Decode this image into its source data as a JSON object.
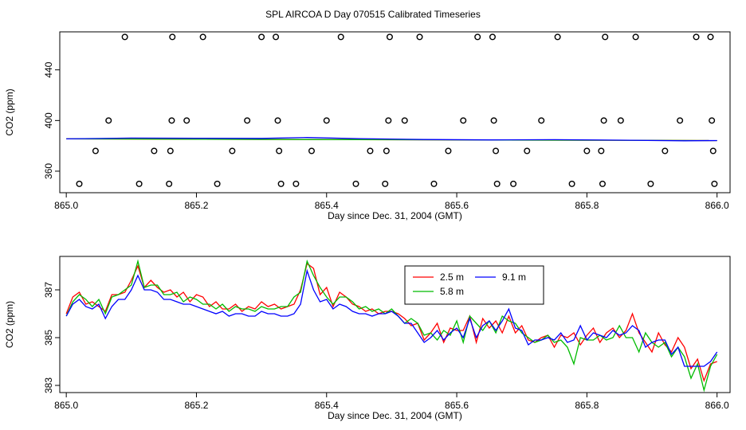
{
  "title": "SPL AIRCOA D  Day 070515  Calibrated Timeseries",
  "chart_data": [
    {
      "type": "scatter",
      "xlabel": "Day since Dec. 31, 2004 (GMT)",
      "ylabel": "CO2 (ppm)",
      "xlim": [
        864.99,
        866.02
      ],
      "ylim": [
        343,
        470
      ],
      "xticks": [
        865.0,
        865.2,
        865.4,
        865.6,
        865.8,
        866.0
      ],
      "xtick_labels": [
        "865.0",
        "865.2",
        "865.4",
        "865.6",
        "865.8",
        "866.0"
      ],
      "yticks": [
        360,
        400,
        440
      ],
      "ytick_labels": [
        "360",
        "400",
        "440"
      ],
      "marker_color": "#000000",
      "points": [
        [
          865.02,
          350
        ],
        [
          865.045,
          376
        ],
        [
          865.065,
          400
        ],
        [
          865.09,
          466
        ],
        [
          865.112,
          350
        ],
        [
          865.135,
          376
        ],
        [
          865.158,
          350
        ],
        [
          865.16,
          376
        ],
        [
          865.162,
          400
        ],
        [
          865.163,
          466
        ],
        [
          865.185,
          400
        ],
        [
          865.21,
          466
        ],
        [
          865.232,
          350
        ],
        [
          865.255,
          376
        ],
        [
          865.278,
          400
        ],
        [
          865.3,
          466
        ],
        [
          865.322,
          466
        ],
        [
          865.325,
          400
        ],
        [
          865.327,
          376
        ],
        [
          865.33,
          350
        ],
        [
          865.353,
          350
        ],
        [
          865.377,
          376
        ],
        [
          865.4,
          400
        ],
        [
          865.422,
          466
        ],
        [
          865.445,
          350
        ],
        [
          865.467,
          376
        ],
        [
          865.49,
          350
        ],
        [
          865.492,
          376
        ],
        [
          865.495,
          400
        ],
        [
          865.497,
          466
        ],
        [
          865.52,
          400
        ],
        [
          865.543,
          466
        ],
        [
          865.565,
          350
        ],
        [
          865.587,
          376
        ],
        [
          865.61,
          400
        ],
        [
          865.632,
          466
        ],
        [
          865.655,
          466
        ],
        [
          865.657,
          400
        ],
        [
          865.66,
          376
        ],
        [
          865.662,
          350
        ],
        [
          865.687,
          350
        ],
        [
          865.708,
          376
        ],
        [
          865.73,
          400
        ],
        [
          865.755,
          466
        ],
        [
          865.777,
          350
        ],
        [
          865.8,
          376
        ],
        [
          865.822,
          376
        ],
        [
          865.824,
          350
        ],
        [
          865.826,
          400
        ],
        [
          865.828,
          466
        ],
        [
          865.852,
          400
        ],
        [
          865.875,
          466
        ],
        [
          865.898,
          350
        ],
        [
          865.92,
          376
        ],
        [
          865.943,
          400
        ],
        [
          865.968,
          466
        ],
        [
          865.99,
          466
        ],
        [
          865.992,
          400
        ],
        [
          865.994,
          376
        ],
        [
          865.996,
          350
        ]
      ],
      "series": [
        {
          "color": "#ff0000",
          "x": [
            865.0,
            866.0
          ],
          "y": [
            385.5,
            384.2
          ]
        },
        {
          "color": "#00bb00",
          "x": [
            865.0,
            866.0
          ],
          "y": [
            385.5,
            384.2
          ]
        },
        {
          "color": "#0000ff",
          "x": [
            865.0,
            865.1,
            865.2,
            865.3,
            865.37,
            865.45,
            865.55,
            865.65,
            865.75,
            865.85,
            865.95,
            866.0
          ],
          "y": [
            385.5,
            386.1,
            386.0,
            385.9,
            386.6,
            385.7,
            385.0,
            384.7,
            384.9,
            384.5,
            384.0,
            384.2
          ]
        }
      ]
    },
    {
      "type": "line",
      "xlabel": "Day since Dec. 31, 2004 (GMT)",
      "ylabel": "CO2 (ppm)",
      "xlim": [
        864.99,
        866.02
      ],
      "ylim": [
        382.7,
        388.4
      ],
      "xticks": [
        865.0,
        865.2,
        865.4,
        865.6,
        865.8,
        866.0
      ],
      "xtick_labels": [
        "865.0",
        "865.2",
        "865.4",
        "865.6",
        "865.8",
        "866.0"
      ],
      "yticks": [
        383,
        385,
        387
      ],
      "ytick_labels": [
        "383",
        "385",
        "387"
      ],
      "legend_position": "top-right",
      "x": [
        865.0,
        865.01,
        865.02,
        865.03,
        865.04,
        865.05,
        865.06,
        865.07,
        865.08,
        865.09,
        865.1,
        865.11,
        865.12,
        865.13,
        865.14,
        865.15,
        865.16,
        865.17,
        865.18,
        865.19,
        865.2,
        865.21,
        865.22,
        865.23,
        865.24,
        865.25,
        865.26,
        865.27,
        865.28,
        865.29,
        865.3,
        865.31,
        865.32,
        865.33,
        865.34,
        865.35,
        865.36,
        865.37,
        865.38,
        865.39,
        865.4,
        865.41,
        865.42,
        865.43,
        865.44,
        865.45,
        865.46,
        865.47,
        865.48,
        865.49,
        865.5,
        865.51,
        865.52,
        865.53,
        865.54,
        865.55,
        865.56,
        865.57,
        865.58,
        865.59,
        865.6,
        865.61,
        865.62,
        865.63,
        865.64,
        865.65,
        865.66,
        865.67,
        865.68,
        865.69,
        865.7,
        865.71,
        865.72,
        865.73,
        865.74,
        865.75,
        865.76,
        865.77,
        865.78,
        865.79,
        865.8,
        865.81,
        865.82,
        865.83,
        865.84,
        865.85,
        865.86,
        865.87,
        865.88,
        865.89,
        865.9,
        865.91,
        865.92,
        865.93,
        865.94,
        865.95,
        865.96,
        865.97,
        865.98,
        865.99,
        866.0
      ],
      "series": [
        {
          "name": "2.5 m",
          "color": "#ff0000",
          "values": [
            386.0,
            386.7,
            386.9,
            386.4,
            386.5,
            386.3,
            386.1,
            386.8,
            386.8,
            386.9,
            387.4,
            388.0,
            387.1,
            387.4,
            387.1,
            386.9,
            387.0,
            386.7,
            386.9,
            386.5,
            386.8,
            386.7,
            386.3,
            386.5,
            386.2,
            386.2,
            386.4,
            386.1,
            386.3,
            386.2,
            386.5,
            386.3,
            386.4,
            386.2,
            386.3,
            386.4,
            387.0,
            388.1,
            387.9,
            386.8,
            387.1,
            386.3,
            386.9,
            386.7,
            386.4,
            386.3,
            386.1,
            386.2,
            386.0,
            386.1,
            386.1,
            386.0,
            385.8,
            385.5,
            385.6,
            384.9,
            385.2,
            385.6,
            384.8,
            385.4,
            385.3,
            385.3,
            385.9,
            384.8,
            385.8,
            385.4,
            385.7,
            385.2,
            385.9,
            385.2,
            385.5,
            384.9,
            384.8,
            385.0,
            385.1,
            384.6,
            385.1,
            385.0,
            385.2,
            384.7,
            385.1,
            385.4,
            384.8,
            385.2,
            385.4,
            385.0,
            385.3,
            386.0,
            385.2,
            384.8,
            384.4,
            385.2,
            384.7,
            384.4,
            385.0,
            384.6,
            383.7,
            384.1,
            383.2,
            383.9,
            384.0
          ]
        },
        {
          "name": "5.8 m",
          "color": "#00bb00",
          "values": [
            385.9,
            386.5,
            386.8,
            386.6,
            386.3,
            386.6,
            386.0,
            386.7,
            386.8,
            387.0,
            387.2,
            388.2,
            387.1,
            387.2,
            387.2,
            386.8,
            386.8,
            386.9,
            386.5,
            386.7,
            386.6,
            386.4,
            386.4,
            386.2,
            386.4,
            386.1,
            386.3,
            386.2,
            386.2,
            386.1,
            386.3,
            386.2,
            386.2,
            386.3,
            386.3,
            386.7,
            386.9,
            388.2,
            387.6,
            387.1,
            386.7,
            386.4,
            386.7,
            386.7,
            386.5,
            386.2,
            386.3,
            386.1,
            386.2,
            386.0,
            386.2,
            385.9,
            385.6,
            385.8,
            385.6,
            385.1,
            385.2,
            384.9,
            385.3,
            385.1,
            385.7,
            384.8,
            385.9,
            385.6,
            385.3,
            385.7,
            385.2,
            385.9,
            385.7,
            385.6,
            385.2,
            385.0,
            384.8,
            384.9,
            385.1,
            384.8,
            384.9,
            384.6,
            383.9,
            385.0,
            384.9,
            384.9,
            385.1,
            384.9,
            385.0,
            385.5,
            385.0,
            385.0,
            384.4,
            385.2,
            384.8,
            384.6,
            384.8,
            384.2,
            384.6,
            384.2,
            383.3,
            383.9,
            382.8,
            383.8,
            384.3
          ]
        },
        {
          "name": "9.1 m",
          "color": "#0000ff",
          "values": [
            385.9,
            386.4,
            386.6,
            386.3,
            386.2,
            386.4,
            385.8,
            386.3,
            386.6,
            386.6,
            387.0,
            387.6,
            387.0,
            387.0,
            386.9,
            386.6,
            386.6,
            386.5,
            386.4,
            386.4,
            386.3,
            386.2,
            386.1,
            386.0,
            386.1,
            385.9,
            386.0,
            386.0,
            385.9,
            385.9,
            386.1,
            386.0,
            386.0,
            385.9,
            385.9,
            386.0,
            386.4,
            387.8,
            387.0,
            386.5,
            386.6,
            386.2,
            386.4,
            386.3,
            386.1,
            386.0,
            386.0,
            385.9,
            386.0,
            386.0,
            386.1,
            385.9,
            385.6,
            385.6,
            385.2,
            384.8,
            385.0,
            385.3,
            384.9,
            385.2,
            385.4,
            385.0,
            385.8,
            385.0,
            385.5,
            385.7,
            385.3,
            385.7,
            386.2,
            385.4,
            385.3,
            384.7,
            384.9,
            384.9,
            385.0,
            384.9,
            385.2,
            384.8,
            384.9,
            385.5,
            384.9,
            385.2,
            385.1,
            385.0,
            385.3,
            385.1,
            385.2,
            385.5,
            385.3,
            384.6,
            384.8,
            384.9,
            384.9,
            384.3,
            384.6,
            383.8,
            383.8,
            383.8,
            383.8,
            384.0,
            384.4
          ]
        }
      ]
    }
  ]
}
